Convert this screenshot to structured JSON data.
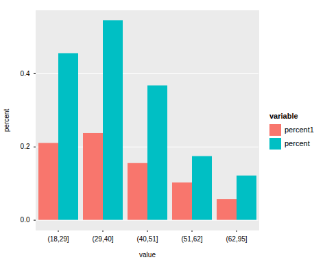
{
  "chart_data": {
    "type": "bar",
    "x_label": "value",
    "y_label": "percent",
    "legend_title": "variable",
    "legend": "right",
    "grid": true,
    "categories": [
      "(18,29]",
      "(29,40]",
      "(40,51]",
      "(51,62]",
      "(62,95]"
    ],
    "series": [
      {
        "name": "percent1",
        "color": "#F8766D",
        "values": [
          0.21,
          0.237,
          0.155,
          0.102,
          0.057
        ]
      },
      {
        "name": "percent",
        "color": "#00BFC4",
        "values": [
          0.455,
          0.545,
          0.367,
          0.174,
          0.121
        ]
      }
    ],
    "ylim": [
      -0.027,
      0.572
    ],
    "yticks": [
      {
        "value": 0,
        "label": "0.0"
      },
      {
        "value": 0.2,
        "label": "0.2"
      },
      {
        "value": 0.4,
        "label": "0.4"
      }
    ]
  }
}
